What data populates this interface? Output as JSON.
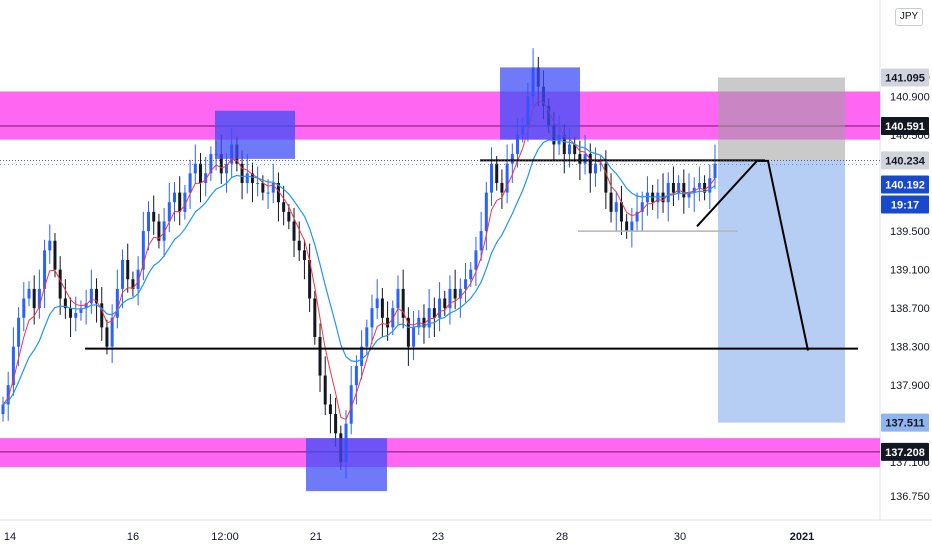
{
  "currency_button": "JPY",
  "chart_data": {
    "type": "candlestick",
    "instrument_currency": "JPY",
    "y_ticks": [
      "141.100",
      "140.900",
      "140.500",
      "139.500",
      "139.100",
      "138.700",
      "138.300",
      "137.900",
      "137.100",
      "136.750"
    ],
    "y_range": [
      136.5,
      141.9
    ],
    "x_ticks": [
      "14",
      "16",
      "12:00",
      "21",
      "23",
      "28",
      "30",
      "2021"
    ],
    "price_badges": [
      {
        "value": "141.095",
        "style": "gray"
      },
      {
        "value": "140.591",
        "style": "dark"
      },
      {
        "value": "140.234",
        "style": "gray"
      },
      {
        "value": "140.192",
        "style": "blue"
      },
      {
        "value": "19:17",
        "style": "blue"
      },
      {
        "value": "137.511",
        "style": "lightblue"
      },
      {
        "value": "137.208",
        "style": "dark"
      }
    ],
    "resistance_zone": {
      "low": 140.45,
      "high": 140.95,
      "line": 140.591
    },
    "support_zone": {
      "low": 137.05,
      "high": 137.35,
      "line": 137.208
    },
    "support_line": 138.28,
    "neckline": 140.234,
    "current_price": 140.192,
    "short_position": {
      "entry": 140.234,
      "stop": 141.095,
      "target": 137.511
    },
    "projected_path": [
      139.55,
      140.23,
      140.23,
      138.26
    ],
    "closes": [
      137.7,
      137.9,
      138.3,
      138.6,
      138.8,
      138.9,
      138.7,
      138.9,
      139.3,
      139.4,
      139.1,
      138.8,
      138.7,
      138.6,
      138.65,
      138.7,
      138.75,
      138.9,
      138.75,
      138.5,
      138.3,
      138.6,
      138.9,
      139.2,
      139.0,
      138.9,
      139.1,
      139.5,
      139.7,
      139.6,
      139.4,
      139.6,
      139.8,
      139.9,
      139.7,
      139.9,
      140.1,
      140.2,
      140.0,
      140.1,
      140.3,
      140.3,
      140.1,
      140.2,
      140.4,
      140.2,
      140.0,
      140.1,
      140.0,
      140.0,
      139.9,
      139.9,
      140.0,
      139.8,
      139.7,
      139.6,
      139.4,
      139.3,
      139.2,
      138.8,
      138.4,
      138.0,
      137.7,
      137.6,
      137.4,
      137.1,
      137.5,
      137.9,
      138.1,
      138.3,
      138.5,
      138.7,
      138.8,
      138.6,
      138.5,
      138.7,
      138.9,
      138.6,
      138.3,
      138.5,
      138.6,
      138.5,
      138.7,
      138.6,
      138.8,
      138.7,
      138.9,
      138.8,
      138.9,
      139.0,
      139.1,
      139.3,
      139.5,
      139.9,
      140.2,
      140.0,
      139.9,
      140.2,
      140.3,
      140.5,
      140.6,
      140.9,
      141.2,
      141.0,
      140.8,
      140.6,
      140.4,
      140.5,
      140.3,
      140.4,
      140.3,
      140.2,
      140.3,
      140.1,
      140.2,
      140.2,
      139.9,
      139.7,
      139.8,
      139.6,
      139.5,
      139.6,
      139.7,
      139.8,
      139.9,
      139.8,
      139.9,
      139.8,
      140.0,
      139.9,
      140.0,
      139.85,
      139.9,
      139.95,
      140.0,
      139.9,
      140.05,
      140.2
    ],
    "x_span": [
      0,
      712
    ]
  }
}
